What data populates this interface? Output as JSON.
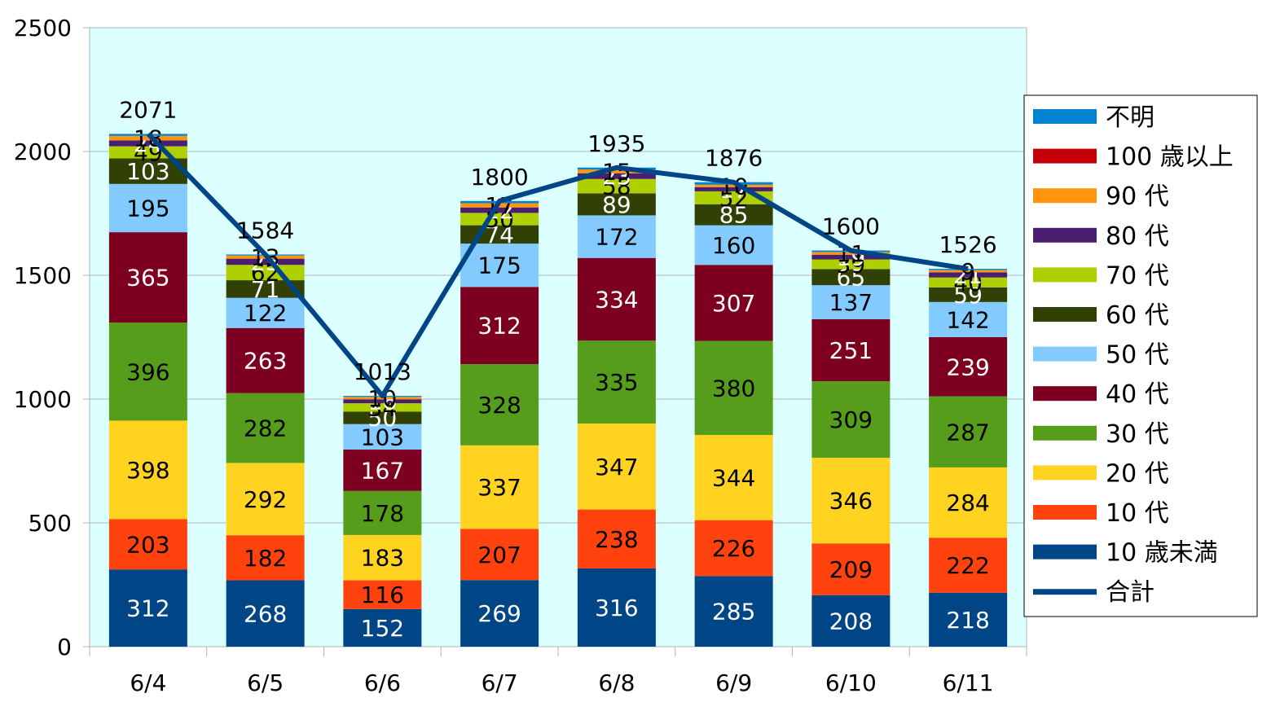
{
  "chart_data": {
    "type": "bar",
    "stacked": true,
    "categories": [
      "6/4",
      "6/5",
      "6/6",
      "6/7",
      "6/8",
      "6/9",
      "6/10",
      "6/11"
    ],
    "ylim": [
      0,
      2500
    ],
    "yticks": [
      0,
      500,
      1000,
      1500,
      2000,
      2500
    ],
    "grid": true,
    "legend_position": "right",
    "plot_background": "#dcffff",
    "series": [
      {
        "name": "10 歳未満",
        "color": "#004586",
        "values": [
          312,
          268,
          152,
          269,
          316,
          285,
          208,
          218
        ]
      },
      {
        "name": "10 代",
        "color": "#ff420e",
        "values": [
          203,
          182,
          116,
          207,
          238,
          226,
          209,
          222
        ]
      },
      {
        "name": "20 代",
        "color": "#ffd320",
        "values": [
          398,
          292,
          183,
          337,
          347,
          344,
          346,
          284
        ]
      },
      {
        "name": "30 代",
        "color": "#579d1c",
        "values": [
          396,
          282,
          178,
          328,
          335,
          380,
          309,
          287
        ]
      },
      {
        "name": "40 代",
        "color": "#7e0021",
        "values": [
          365,
          263,
          167,
          312,
          334,
          307,
          251,
          239
        ]
      },
      {
        "name": "50 代",
        "color": "#83caff",
        "values": [
          195,
          122,
          103,
          175,
          172,
          160,
          137,
          142
        ]
      },
      {
        "name": "60 代",
        "color": "#314004",
        "values": [
          103,
          71,
          50,
          74,
          89,
          85,
          65,
          59
        ]
      },
      {
        "name": "70 代",
        "color": "#aecf00",
        "values": [
          49,
          62,
          34,
          50,
          58,
          52,
          39,
          40
        ]
      },
      {
        "name": "80 代",
        "color": "#4b1f6f",
        "values": [
          24,
          25,
          16,
          22,
          23,
          17,
          19,
          21
        ]
      },
      {
        "name": "90 代",
        "color": "#ff950e",
        "values": [
          18,
          13,
          10,
          17,
          15,
          10,
          11,
          9
        ]
      },
      {
        "name": "100 歳以上",
        "color": "#c5000b",
        "values": [
          0,
          0,
          0,
          0,
          0,
          0,
          0,
          0
        ]
      },
      {
        "name": "不明",
        "color": "#0084d1",
        "values": [
          8,
          4,
          4,
          9,
          8,
          10,
          6,
          5
        ]
      }
    ],
    "line": {
      "name": "合計",
      "color": "#004586",
      "values": [
        2071,
        1584,
        1013,
        1800,
        1935,
        1876,
        1600,
        1526
      ]
    },
    "legend_order": [
      "不明",
      "100 歳以上",
      "90 代",
      "80 代",
      "70 代",
      "60 代",
      "50 代",
      "40 代",
      "30 代",
      "20 代",
      "10 代",
      "10 歳未満",
      "合計"
    ]
  }
}
